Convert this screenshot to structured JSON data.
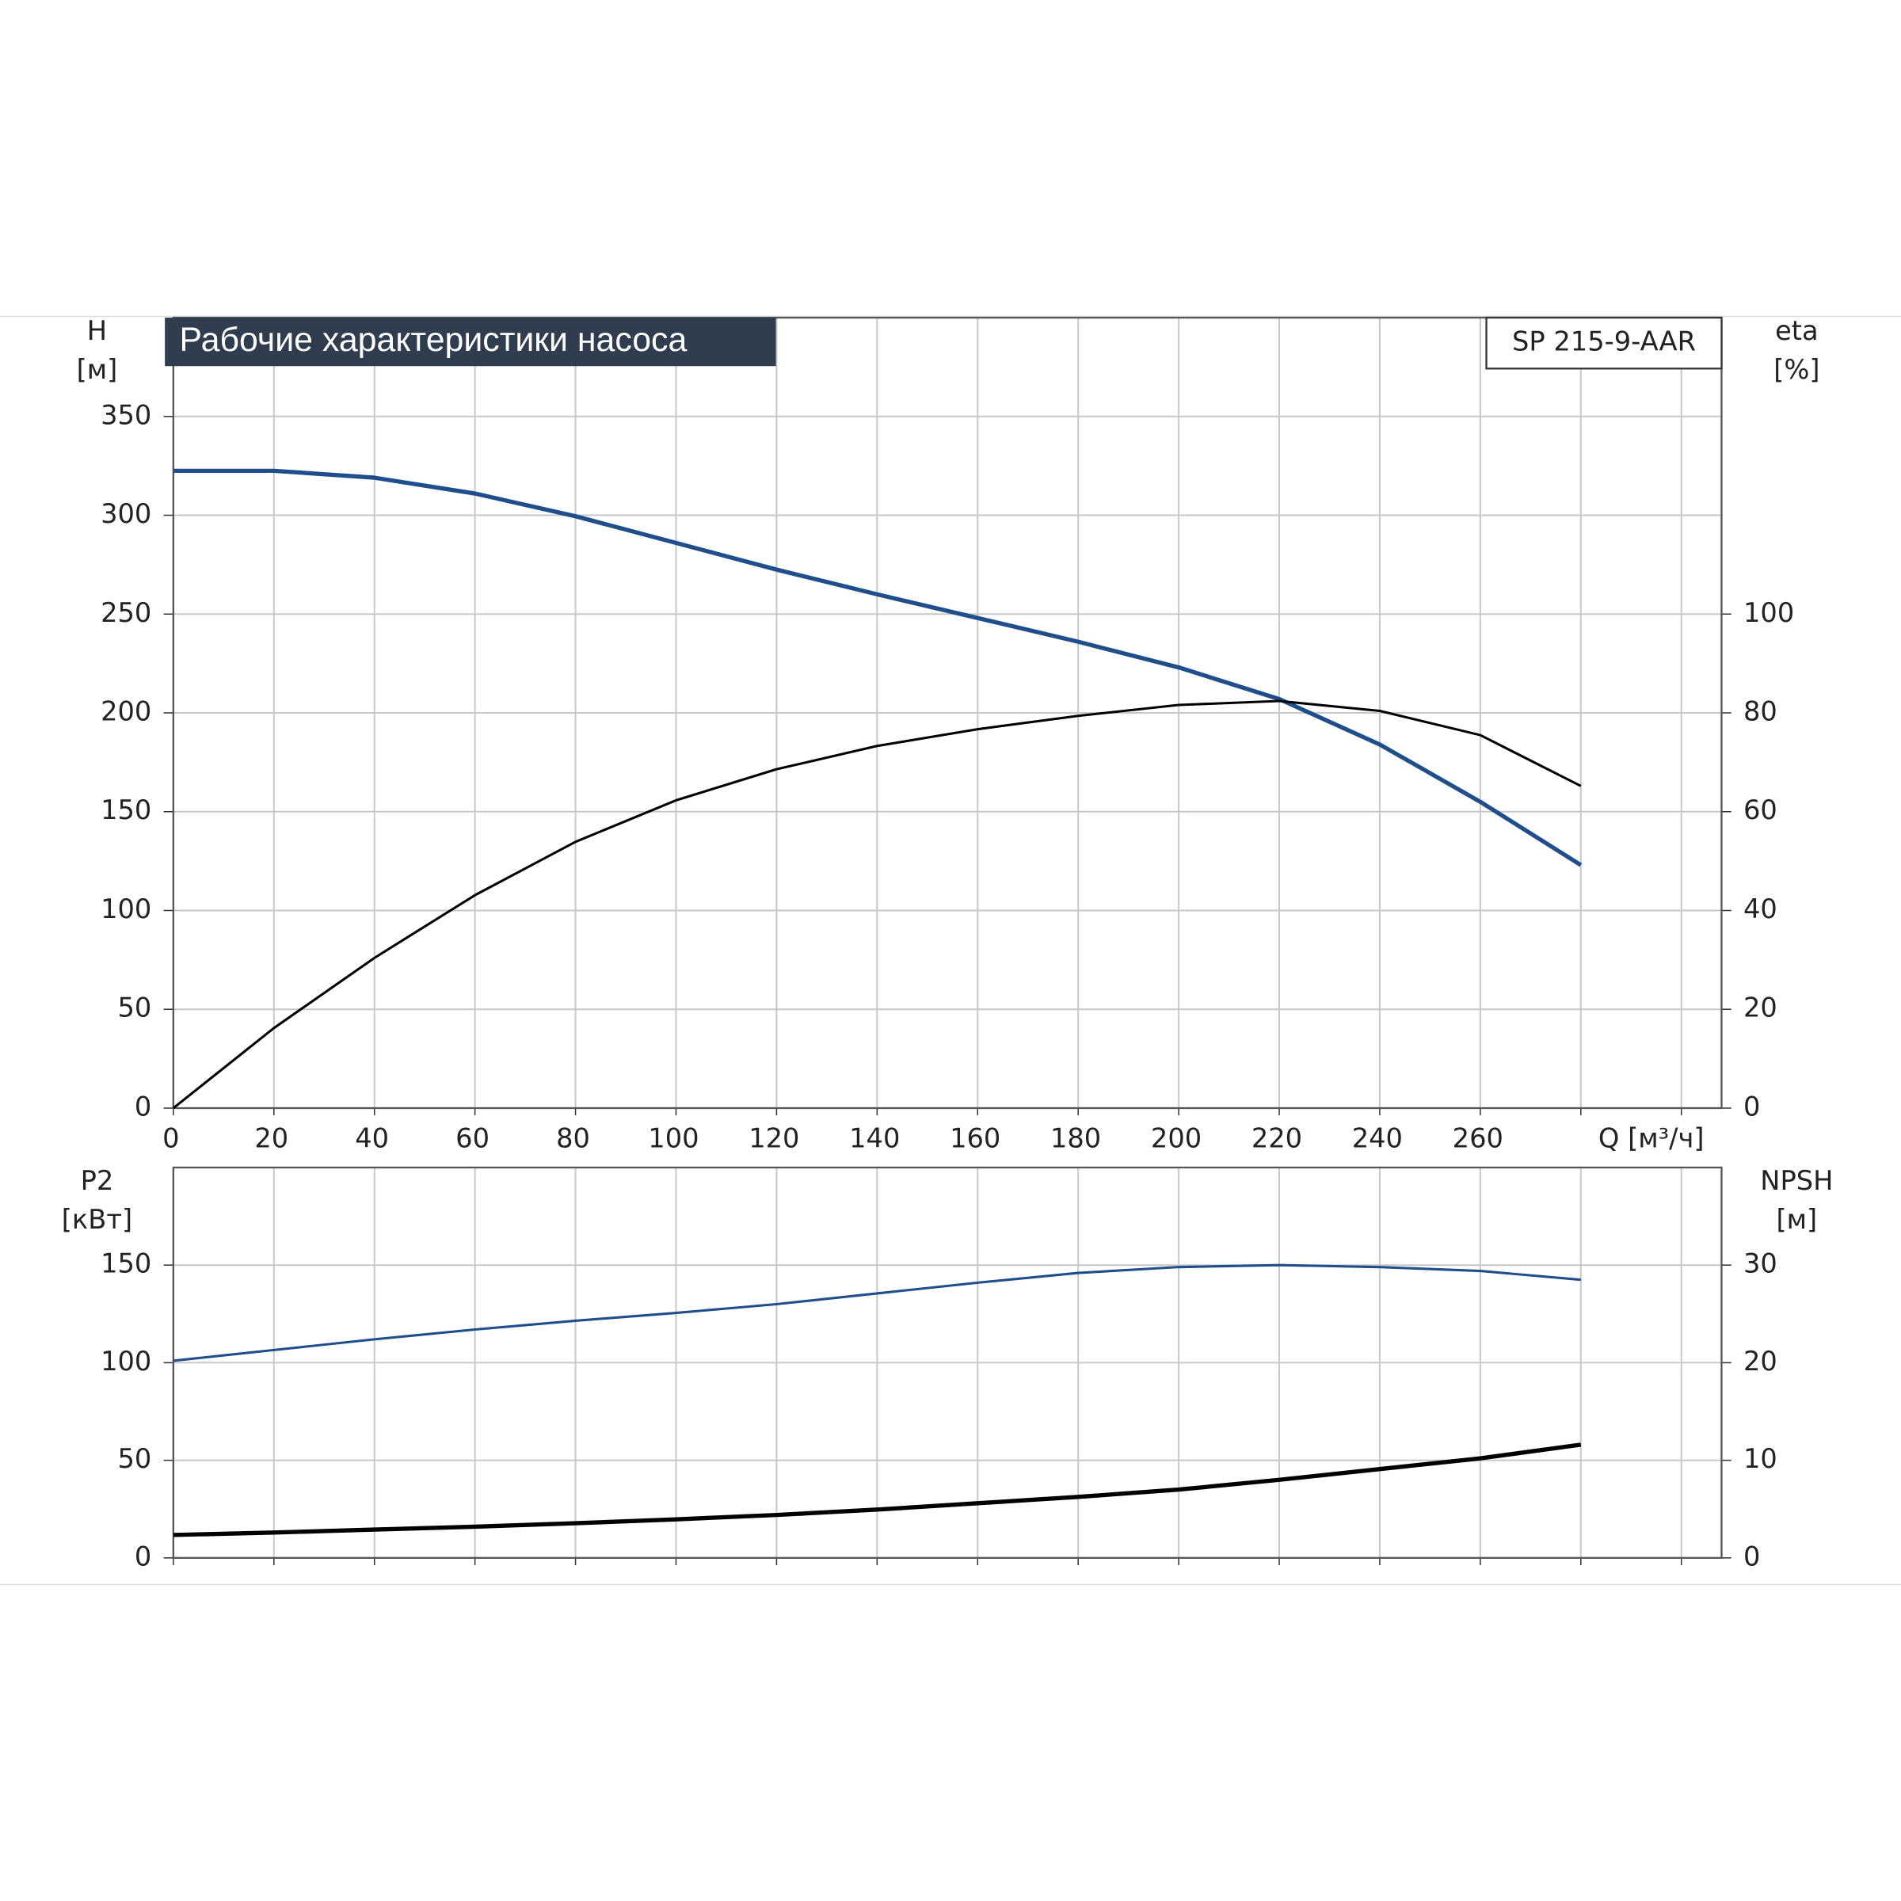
{
  "chart_data": [
    {
      "type": "line",
      "title": "Рабочие характеристики насоса",
      "model": "SP 215-9-AAR",
      "ylabel": "H",
      "yunit": "[м]",
      "y2label": "eta",
      "y2unit": "[%]",
      "xlabel": "Q [м³/ч]",
      "x": [
        0,
        20,
        40,
        60,
        80,
        100,
        120,
        140,
        160,
        180,
        200,
        220,
        240,
        260,
        280
      ],
      "series": [
        {
          "name": "H",
          "color": "#1f4e8c",
          "values": [
            322.5,
            322.5,
            319,
            311,
            299.5,
            286,
            272.5,
            260,
            248,
            236,
            223,
            207,
            184,
            155,
            123
          ]
        },
        {
          "name": "eta",
          "color": "#000000",
          "axis": "y2",
          "values": [
            0,
            16.2,
            30.4,
            43.1,
            53.9,
            62.3,
            68.6,
            73.3,
            76.7,
            79.4,
            81.6,
            82.4,
            80.4,
            75.5,
            65.2
          ]
        }
      ],
      "xlim": [
        0,
        308
      ],
      "xticks": [
        0,
        20,
        40,
        60,
        80,
        100,
        120,
        140,
        160,
        180,
        200,
        220,
        240,
        260
      ],
      "xgrid": [
        0,
        20,
        40,
        60,
        80,
        100,
        120,
        140,
        160,
        180,
        200,
        220,
        240,
        260,
        280,
        300
      ],
      "ylim": [
        0,
        400
      ],
      "yticks": [
        0,
        50,
        100,
        150,
        200,
        250,
        300,
        350
      ],
      "y2lim": [
        0,
        160
      ],
      "y2ticks": [
        0,
        20,
        40,
        60,
        80,
        100
      ],
      "grid": true
    },
    {
      "type": "line",
      "ylabel": "P2",
      "yunit": "[кВт]",
      "y2label": "NPSH",
      "y2unit": "[м]",
      "x": [
        0,
        20,
        40,
        60,
        80,
        100,
        120,
        140,
        160,
        180,
        200,
        220,
        240,
        260,
        280
      ],
      "series": [
        {
          "name": "P2",
          "color": "#1f4e8c",
          "values": [
            101,
            106.5,
            112,
            117,
            121.5,
            125.5,
            130,
            135.5,
            141,
            146,
            149,
            150,
            149,
            147,
            142.5
          ]
        },
        {
          "name": "NPSH",
          "color": "#000000",
          "axis": "y2",
          "values": [
            2.35,
            2.6,
            2.9,
            3.2,
            3.55,
            3.95,
            4.4,
            4.95,
            5.6,
            6.25,
            7.0,
            8.0,
            9.1,
            10.2,
            11.6
          ]
        }
      ],
      "xlim": [
        0,
        308
      ],
      "xgrid": [
        0,
        20,
        40,
        60,
        80,
        100,
        120,
        140,
        160,
        180,
        200,
        220,
        240,
        260,
        280,
        300
      ],
      "ylim": [
        0,
        200
      ],
      "yticks": [
        0,
        50,
        100,
        150
      ],
      "y2lim": [
        0,
        40
      ],
      "y2ticks": [
        0,
        10,
        20,
        30
      ],
      "grid": true
    }
  ]
}
